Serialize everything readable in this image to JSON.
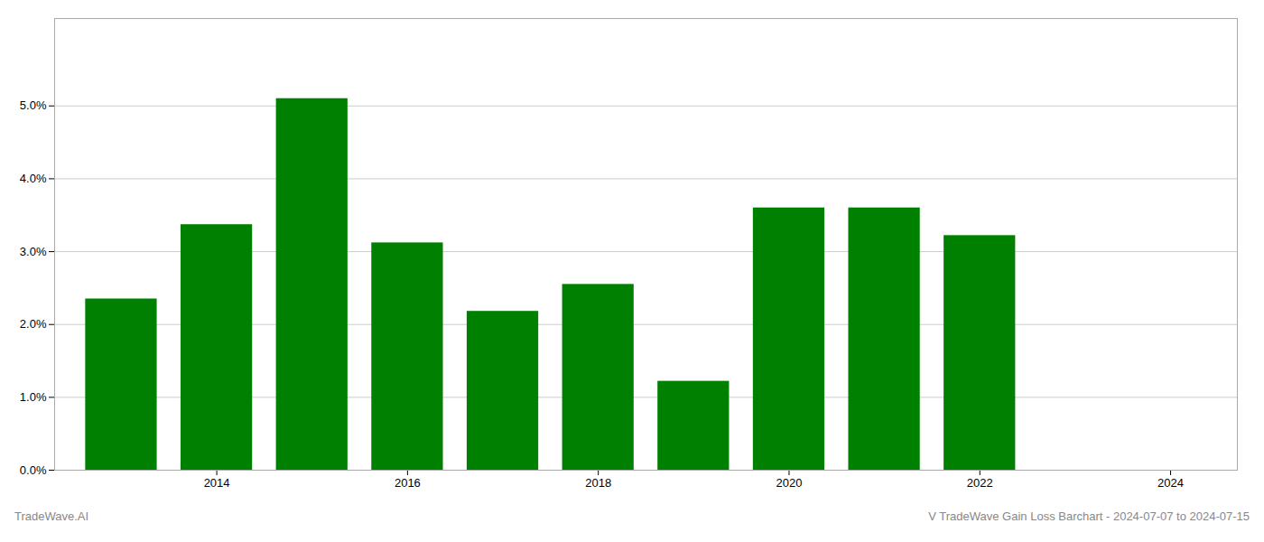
{
  "chart_data": {
    "type": "bar",
    "x": [
      2013,
      2014,
      2015,
      2016,
      2017,
      2018,
      2019,
      2020,
      2021,
      2022
    ],
    "values": [
      0.0235,
      0.0337,
      0.051,
      0.0312,
      0.0218,
      0.0255,
      0.0122,
      0.036,
      0.036,
      0.0322
    ],
    "color": "#008000",
    "xlim": [
      2012.3,
      2024.7
    ],
    "xticks": [
      2014,
      2016,
      2018,
      2020,
      2022,
      2024
    ],
    "ylim": [
      0,
      0.062
    ],
    "yticks": [
      {
        "value": 0.0,
        "label": "0.0%"
      },
      {
        "value": 0.01,
        "label": "1.0%"
      },
      {
        "value": 0.02,
        "label": "2.0%"
      },
      {
        "value": 0.03,
        "label": "3.0%"
      },
      {
        "value": 0.04,
        "label": "4.0%"
      },
      {
        "value": 0.05,
        "label": "5.0%"
      }
    ],
    "grid": true,
    "annotations": [
      "TradeWave.AI",
      "V TradeWave Gain Loss Barchart - 2024-07-07 to 2024-07-15"
    ]
  }
}
